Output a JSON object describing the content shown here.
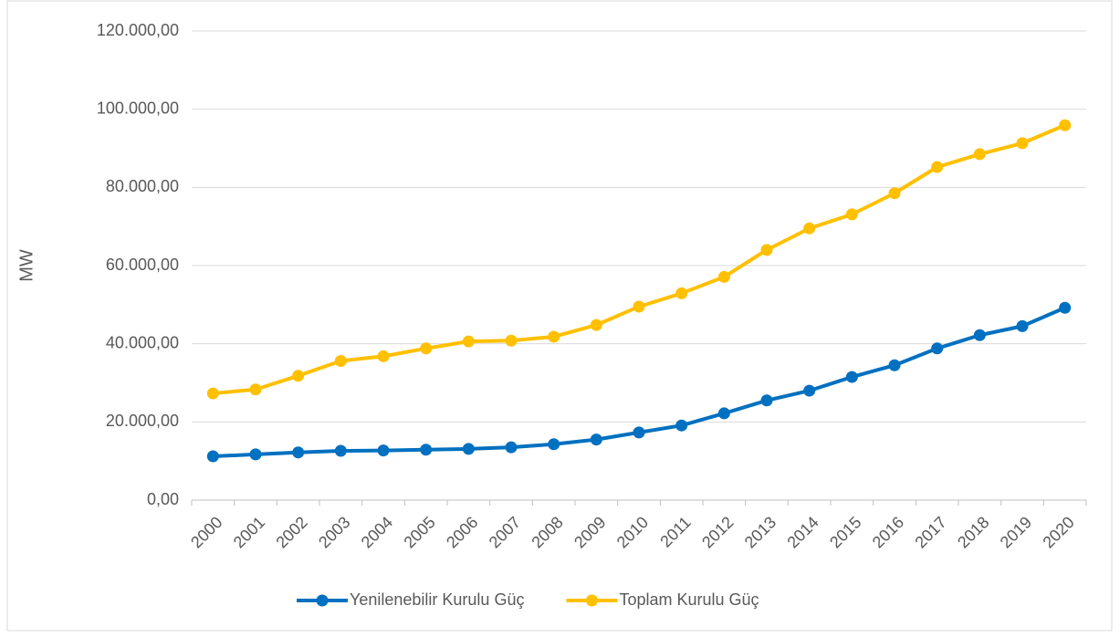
{
  "chart_data": {
    "type": "line",
    "y_label": "MW",
    "categories": [
      "2000",
      "2001",
      "2002",
      "2003",
      "2004",
      "2005",
      "2006",
      "2007",
      "2008",
      "2009",
      "2010",
      "2011",
      "2012",
      "2013",
      "2014",
      "2015",
      "2016",
      "2017",
      "2018",
      "2019",
      "2020"
    ],
    "series": [
      {
        "name": "Yenilenebilir Kurulu Güç",
        "color": "#0070c0",
        "values": [
          11200,
          11700,
          12200,
          12600,
          12700,
          12900,
          13100,
          13500,
          14300,
          15500,
          17300,
          19100,
          22200,
          25500,
          28000,
          31500,
          34500,
          38800,
          42200,
          44500,
          49200
        ]
      },
      {
        "name": "Toplam Kurulu Güç",
        "color": "#ffc000",
        "values": [
          27300,
          28300,
          31800,
          35600,
          36800,
          38800,
          40600,
          40800,
          41800,
          44800,
          49500,
          52900,
          57100,
          64000,
          69500,
          73100,
          78500,
          85200,
          88500,
          91300,
          95900
        ]
      }
    ],
    "ylim": [
      0,
      120000
    ],
    "yticks": [
      {
        "value": 0,
        "label": "0,00"
      },
      {
        "value": 20000,
        "label": "20.000,00"
      },
      {
        "value": 40000,
        "label": "40.000,00"
      },
      {
        "value": 60000,
        "label": "60.000,00"
      },
      {
        "value": 80000,
        "label": "80.000,00"
      },
      {
        "value": 100000,
        "label": "100.000,00"
      },
      {
        "value": 120000,
        "label": "120.000,00"
      }
    ],
    "grid": true,
    "legend": "bottom"
  }
}
